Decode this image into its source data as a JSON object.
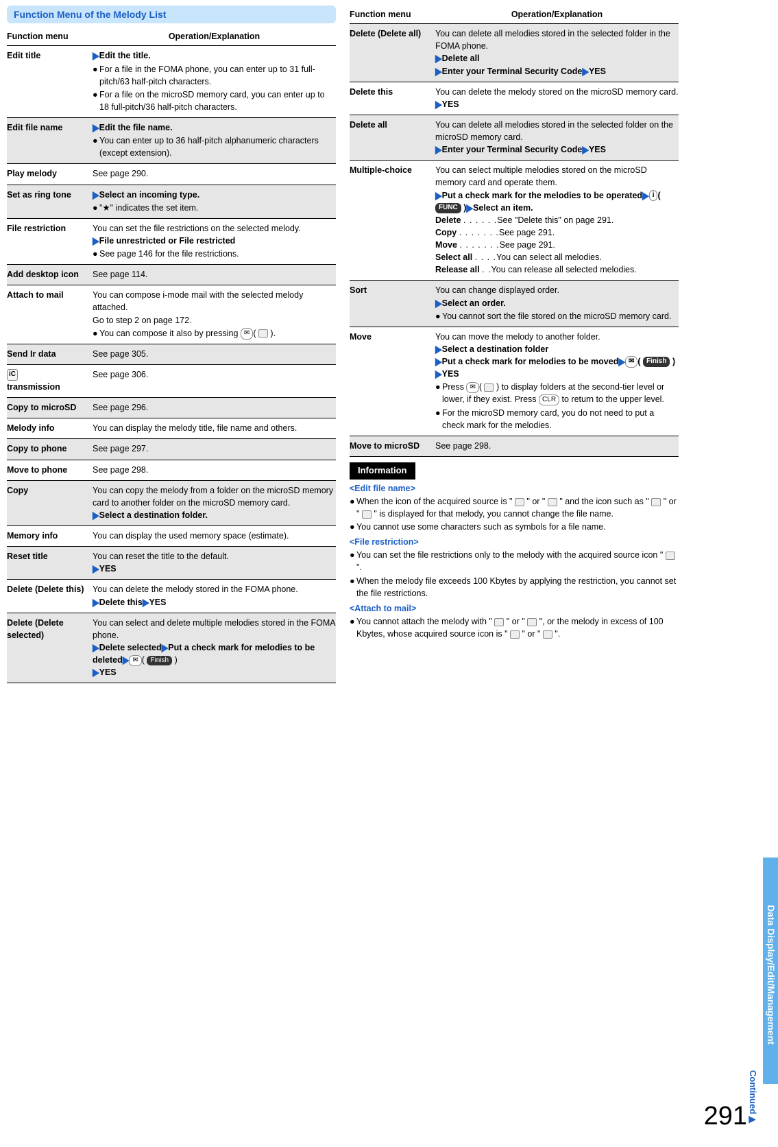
{
  "page_number": "291",
  "side_tab": "Data Display/Edit/Management",
  "continued": "Continued",
  "section_title": "Function Menu of the Melody List",
  "hdr_func": "Function menu",
  "hdr_op": "Operation/Explanation",
  "info_header": "Information",
  "left": [
    {
      "gray": false,
      "title": "Edit title",
      "lines": [
        {
          "type": "tri",
          "text": "Edit the title."
        },
        {
          "type": "bul",
          "text": "For a file in the FOMA phone, you can enter up to 31 full-pitch/63 half-pitch characters."
        },
        {
          "type": "bul",
          "text": "For a file on the microSD memory card, you can enter up to 18 full-pitch/36 half-pitch characters."
        }
      ]
    },
    {
      "gray": true,
      "title": "Edit file name",
      "lines": [
        {
          "type": "tri",
          "text": "Edit the file name."
        },
        {
          "type": "bul",
          "text": "You can enter up to 36 half-pitch alphanumeric characters (except extension)."
        }
      ]
    },
    {
      "gray": false,
      "title": "Play melody",
      "lines": [
        {
          "type": "plain",
          "text": "See page 290."
        }
      ]
    },
    {
      "gray": true,
      "title": "Set as ring tone",
      "lines": [
        {
          "type": "tri",
          "text": "Select an incoming type."
        },
        {
          "type": "bul",
          "text": "\"★\" indicates the set item."
        }
      ]
    },
    {
      "gray": false,
      "title": "File restriction",
      "lines": [
        {
          "type": "plain",
          "text": "You can set the file restrictions on the selected melody."
        },
        {
          "type": "tri",
          "text": "File unrestricted or File restricted"
        },
        {
          "type": "bul",
          "text": "See page 146 for the file restrictions."
        }
      ]
    },
    {
      "gray": true,
      "title": "Add desktop icon",
      "lines": [
        {
          "type": "plain",
          "text": "See page 114."
        }
      ]
    },
    {
      "gray": false,
      "title": "Attach to mail",
      "lines": [
        {
          "type": "plain",
          "text": "You can compose i-mode mail with the selected melody attached."
        },
        {
          "type": "plain",
          "text": "Go to step 2 on page 172."
        },
        {
          "type": "bul_html",
          "text": "You can compose it also by pressing <span class='key-btn'>✉</span>( <span class='icon-small'></span> )."
        }
      ]
    },
    {
      "gray": true,
      "title": "Send Ir data",
      "lines": [
        {
          "type": "plain",
          "text": "See page 305."
        }
      ]
    },
    {
      "gray": false,
      "title_html": "<span class='icon-box'>iC</span><br>transmission",
      "lines": [
        {
          "type": "plain",
          "text": "See page 306."
        }
      ]
    },
    {
      "gray": true,
      "title": "Copy to microSD",
      "lines": [
        {
          "type": "plain",
          "text": "See page 296."
        }
      ]
    },
    {
      "gray": false,
      "title": "Melody info",
      "lines": [
        {
          "type": "plain",
          "text": "You can display the melody title, file name and others."
        }
      ]
    },
    {
      "gray": true,
      "title": "Copy to phone",
      "lines": [
        {
          "type": "plain",
          "text": "See page 297."
        }
      ]
    },
    {
      "gray": false,
      "title": "Move to phone",
      "lines": [
        {
          "type": "plain",
          "text": "See page 298."
        }
      ]
    },
    {
      "gray": true,
      "title": "Copy",
      "lines": [
        {
          "type": "plain",
          "text": "You can copy the melody from a folder on the microSD memory card to another folder on the microSD memory card."
        },
        {
          "type": "tri",
          "text": "Select a destination folder."
        }
      ]
    },
    {
      "gray": false,
      "title": "Memory info",
      "lines": [
        {
          "type": "plain",
          "text": "You can display the used memory space (estimate)."
        }
      ]
    },
    {
      "gray": true,
      "title": "Reset title",
      "lines": [
        {
          "type": "plain",
          "text": "You can reset the title to the default."
        },
        {
          "type": "tri",
          "text": "YES"
        }
      ]
    },
    {
      "gray": false,
      "title": "Delete (Delete this)",
      "lines": [
        {
          "type": "plain",
          "text": "You can delete the melody stored in the FOMA phone."
        },
        {
          "type": "tri2",
          "a": "Delete this",
          "b": "YES"
        }
      ]
    },
    {
      "gray": true,
      "title": "Delete (Delete selected)",
      "lines": [
        {
          "type": "plain",
          "text": "You can select and delete multiple melodies stored in the FOMA phone."
        },
        {
          "type": "tri2_html",
          "a": "Delete selected",
          "b": "Put a check mark for melodies to be deleted",
          "c_html": "<span class='key-btn'>✉</span>( <span class='func-pill'>Finish</span> )"
        },
        {
          "type": "tri",
          "text": "YES"
        }
      ]
    }
  ],
  "right": [
    {
      "gray": true,
      "title": "Delete (Delete all)",
      "lines": [
        {
          "type": "plain",
          "text": "You can delete all melodies stored in the selected folder in the FOMA phone."
        },
        {
          "type": "tri",
          "text": "Delete all"
        },
        {
          "type": "tri2",
          "a": "Enter your Terminal Security Code",
          "b": "YES"
        }
      ]
    },
    {
      "gray": false,
      "title": "Delete this",
      "lines": [
        {
          "type": "plain",
          "text": "You can delete the melody stored on the microSD memory card."
        },
        {
          "type": "tri",
          "text": "YES"
        }
      ]
    },
    {
      "gray": true,
      "title": "Delete all",
      "lines": [
        {
          "type": "plain",
          "text": "You can delete all melodies stored in the selected folder on the microSD memory card."
        },
        {
          "type": "tri2",
          "a": "Enter your Terminal Security Code",
          "b": "YES"
        }
      ]
    },
    {
      "gray": false,
      "title": "Multiple-choice",
      "lines": [
        {
          "type": "plain",
          "text": "You can select multiple melodies stored on the microSD memory card and operate them."
        },
        {
          "type": "tri_html",
          "text": "Put a check mark for the melodies to be operated<span class='tri'>▶</span><span class='key-btn'>i</span>( <span class='func-pill'>FUNC</span> )<span class='tri'>▶</span><span class='bold'>Select an item.</span>"
        },
        {
          "type": "def",
          "k": "Delete",
          "d": ". . . . . .",
          "v": "See \"Delete this\" on page 291."
        },
        {
          "type": "def",
          "k": "Copy",
          "d": ". . . . . . .",
          "v": "See page 291."
        },
        {
          "type": "def",
          "k": "Move",
          "d": ". . . . . . .",
          "v": "See page 291."
        },
        {
          "type": "def",
          "k": "Select all",
          "d": ". . . .",
          "v": "You can select all melodies."
        },
        {
          "type": "def",
          "k": "Release all",
          "d": ". .",
          "v": "You can release all selected melodies."
        }
      ]
    },
    {
      "gray": true,
      "title": "Sort",
      "lines": [
        {
          "type": "plain",
          "text": "You can change displayed order."
        },
        {
          "type": "tri",
          "text": "Select an order."
        },
        {
          "type": "bul",
          "text": "You cannot sort the file stored on the microSD memory card."
        }
      ]
    },
    {
      "gray": false,
      "title": "Move",
      "lines": [
        {
          "type": "plain",
          "text": "You can move the melody to another folder."
        },
        {
          "type": "tri",
          "text": "Select a destination folder"
        },
        {
          "type": "tri_html",
          "text": "Put a check mark for melodies to be moved<span class='tri'>▶</span><span class='key-btn'>✉</span>( <span class='func-pill'>Finish</span> )<span class='tri'>▶</span><span class='bold'>YES</span>"
        },
        {
          "type": "bul_html",
          "text": "Press <span class='key-btn'>✉</span>( <span class='icon-small'></span> ) to display folders at the second-tier level or lower, if they exist. Press <span class='key-btn'>CLR</span> to return to the upper level."
        },
        {
          "type": "bul",
          "text": "For the microSD memory card, you do not need to put a check mark for the melodies."
        }
      ]
    },
    {
      "gray": true,
      "title": "Move to microSD",
      "lines": [
        {
          "type": "plain",
          "text": "See page 298."
        }
      ]
    }
  ],
  "info": {
    "sub1": "<Edit file name>",
    "b1": "When the icon of the acquired source is \" <span class='icon-small'></span> \" or \" <span class='icon-small'></span> \" and the icon such as \" <span class='icon-small'></span> \" or \" <span class='icon-small'></span> \" is displayed for that melody, you cannot change the file name.",
    "b2": "You cannot use some characters such as symbols for a file name.",
    "sub2": "<File restriction>",
    "b3": "You can set the file restrictions only to the melody with the acquired source icon \" <span class='icon-small'></span> \".",
    "b4": "When the melody file exceeds 100 Kbytes by applying the restriction, you cannot set the file restrictions.",
    "sub3": "<Attach to mail>",
    "b5": "You cannot attach the melody with \" <span class='icon-small'></span> \" or \" <span class='icon-small'></span> \", or the melody in excess of 100 Kbytes, whose acquired source icon is \" <span class='icon-small'></span> \" or \" <span class='icon-small'></span> \"."
  }
}
